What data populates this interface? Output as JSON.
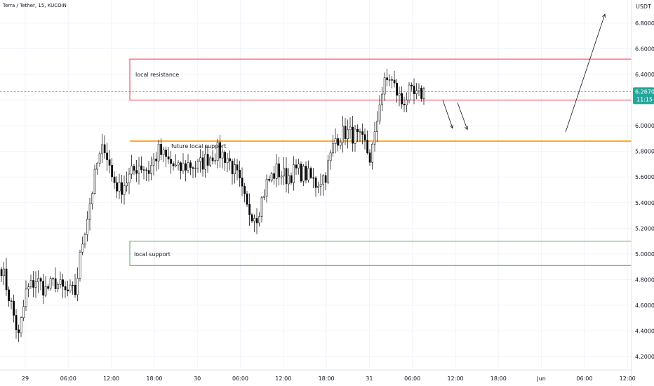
{
  "header": {
    "symbol_title": "Terra / Tether, 15, KUCOIN",
    "currency": "USDT"
  },
  "price_tag": {
    "price": "6.2670",
    "countdown": "11:15"
  },
  "colors": {
    "up": "#26a69a",
    "down": "#ef5350",
    "candle": "#000000",
    "resistance_box": "#f23645",
    "support_box": "#4caf50",
    "future_support_line": "#ff9800",
    "price_line": "#26a69a",
    "axis_text": "#131722",
    "arrow": "#131722"
  },
  "annotations": {
    "resistance_label": "local resistance",
    "future_support_label": "future local support",
    "support_label": "local support"
  },
  "chart_data": {
    "type": "candlestick",
    "title": "Terra / Tether, 15, KUCOIN",
    "xlabel": "",
    "ylabel": "USDT",
    "ylim": [
      4.1,
      7.0
    ],
    "y_ticks": [
      "6.8000",
      "6.6000",
      "6.4000",
      "6.2000",
      "6.0000",
      "5.8000",
      "5.6000",
      "5.4000",
      "5.2000",
      "5.0000",
      "4.8000",
      "4.6000",
      "4.4000",
      "4.2000"
    ],
    "x_ticks": [
      "29",
      "06:00",
      "12:00",
      "18:00",
      "30",
      "06:00",
      "12:00",
      "18:00",
      "31",
      "06:00",
      "12:00",
      "18:00",
      "Jun",
      "06:00",
      "12:00"
    ],
    "last_price": 6.267,
    "zones": [
      {
        "label": "local resistance",
        "from": 6.2,
        "to": 6.52
      },
      {
        "label": "local support",
        "from": 4.91,
        "to": 5.1
      }
    ],
    "levels": [
      {
        "label": "future local support",
        "value": 5.88
      }
    ],
    "ohlc_anchors": [
      [
        0,
        4.9
      ],
      [
        4,
        4.6
      ],
      [
        7,
        4.35
      ],
      [
        10,
        4.7
      ],
      [
        14,
        4.8
      ],
      [
        18,
        4.72
      ],
      [
        22,
        4.78
      ],
      [
        26,
        4.7
      ],
      [
        30,
        4.7
      ],
      [
        33,
        5.1
      ],
      [
        36,
        5.4
      ],
      [
        39,
        5.7
      ],
      [
        42,
        5.85
      ],
      [
        45,
        5.6
      ],
      [
        48,
        5.5
      ],
      [
        52,
        5.6
      ],
      [
        56,
        5.7
      ],
      [
        60,
        5.65
      ],
      [
        64,
        5.8
      ],
      [
        68,
        5.72
      ],
      [
        72,
        5.65
      ],
      [
        76,
        5.7
      ],
      [
        80,
        5.68
      ],
      [
        84,
        5.75
      ],
      [
        88,
        5.8
      ],
      [
        92,
        5.75
      ],
      [
        96,
        5.6
      ],
      [
        100,
        5.35
      ],
      [
        104,
        5.3
      ],
      [
        108,
        5.55
      ],
      [
        112,
        5.65
      ],
      [
        116,
        5.6
      ],
      [
        120,
        5.65
      ],
      [
        124,
        5.62
      ],
      [
        128,
        5.55
      ],
      [
        132,
        5.62
      ],
      [
        136,
        5.9
      ],
      [
        140,
        5.95
      ],
      [
        144,
        5.92
      ],
      [
        148,
        5.85
      ],
      [
        150,
        5.75
      ],
      [
        152,
        5.9
      ],
      [
        154,
        6.2
      ],
      [
        156,
        6.32
      ],
      [
        158,
        6.38
      ],
      [
        160,
        6.3
      ],
      [
        163,
        6.18
      ],
      [
        166,
        6.25
      ],
      [
        169,
        6.22
      ],
      [
        172,
        6.27
      ]
    ],
    "projection_arrows": [
      {
        "from": [
          180,
          6.2
        ],
        "to": [
          184,
          5.98
        ]
      },
      {
        "from": [
          186,
          6.18
        ],
        "to": [
          190,
          5.97
        ]
      },
      {
        "from": [
          230,
          5.95
        ],
        "to": [
          246,
          6.87
        ]
      }
    ]
  }
}
